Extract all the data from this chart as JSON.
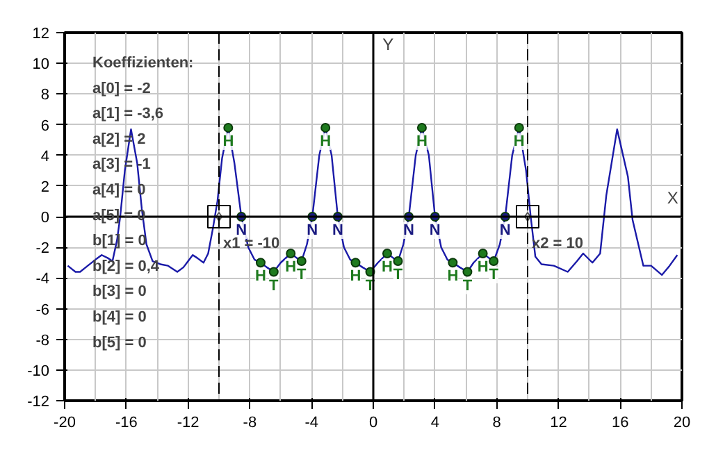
{
  "chart_data": {
    "type": "line",
    "xlabel": "X",
    "ylabel": "Y",
    "xlim": [
      -20,
      20
    ],
    "ylim": [
      -12,
      12
    ],
    "xticks": [
      -20,
      -16,
      -12,
      -8,
      -4,
      0,
      4,
      8,
      12,
      16,
      20
    ],
    "yticks": [
      -12,
      -10,
      -8,
      -6,
      -4,
      -2,
      0,
      2,
      4,
      6,
      8,
      10,
      12
    ],
    "grid": true,
    "line_style": "solid",
    "marker": "none",
    "series": [
      {
        "color": "#1a1aa8",
        "x": [
          -19.8,
          -19.3,
          -19.0,
          -18.5,
          -18.0,
          -17.6,
          -17.2,
          -16.9,
          -16.6,
          -16.4,
          -16.1,
          -15.7,
          -15.3,
          -15.0,
          -14.7,
          -14.3,
          -13.8,
          -13.3,
          -12.7,
          -12.3,
          -12.0,
          -11.7,
          -11.4,
          -11.0,
          -10.7,
          -10.4,
          -10.1,
          -9.8,
          -9.4,
          -9.0,
          -8.55,
          -8.1,
          -7.7,
          -7.3,
          -6.9,
          -6.45,
          -6.0,
          -5.35,
          -4.95,
          -4.65,
          -4.3,
          -3.95,
          -3.5,
          -3.1,
          -2.7,
          -2.3,
          -1.9,
          -1.5,
          -1.15,
          -0.7,
          -0.2,
          0.3,
          0.9,
          1.3,
          1.6,
          1.95,
          2.3,
          2.75,
          3.15,
          3.6,
          4.0,
          4.4,
          4.8,
          5.15,
          5.6,
          6.1,
          6.5,
          7.1,
          7.5,
          7.8,
          8.2,
          8.55,
          9.0,
          9.45,
          9.9,
          10.2,
          10.5,
          10.9,
          11.7,
          12.6,
          13.2,
          13.6,
          14.2,
          14.7,
          15.1,
          15.8,
          16.5,
          16.8,
          17.5,
          18.0,
          18.7,
          19.2,
          19.7
        ],
        "values": [
          -3.2,
          -3.6,
          -3.6,
          -3.2,
          -2.8,
          -2.5,
          -2.7,
          -2.9,
          -1.5,
          0,
          3,
          5.7,
          3.5,
          0.5,
          -1.8,
          -2.9,
          -3.1,
          -3.2,
          -3.6,
          -3.3,
          -2.9,
          -2.5,
          -2.7,
          -3.0,
          -2.4,
          -0.8,
          1.0,
          3.8,
          5.8,
          3.5,
          0,
          -2.0,
          -2.8,
          -3.0,
          -3.3,
          -3.6,
          -3.0,
          -2.4,
          -2.7,
          -2.9,
          -1.8,
          0,
          4,
          5.8,
          4,
          0,
          -2.0,
          -2.8,
          -3.0,
          -3.3,
          -3.6,
          -3.0,
          -2.4,
          -2.7,
          -2.9,
          -1.8,
          0,
          4,
          5.8,
          4,
          0,
          -2.0,
          -2.8,
          -3.0,
          -3.3,
          -3.6,
          -3.0,
          -2.4,
          -2.7,
          -2.9,
          -1.8,
          0,
          4,
          5.8,
          3.0,
          0,
          -2.6,
          -3.1,
          -3.2,
          -3.6,
          -2.9,
          -2.4,
          -3.0,
          -2.4,
          1.4,
          5.7,
          2.6,
          -0.2,
          -3.2,
          -3.2,
          -3.8,
          -3.2,
          -2.5
        ]
      },
      {
        "type": "scatter",
        "marker": "circle",
        "color": "#1e7a1e",
        "x": [
          -9.4,
          -3.1,
          3.15,
          9.45,
          -7.3,
          -5.35,
          -1.15,
          0.9,
          5.15,
          7.1,
          -6.45,
          -4.65,
          -0.2,
          1.6,
          6.1,
          7.8
        ],
        "values": [
          5.8,
          5.8,
          5.8,
          5.8,
          -3.0,
          -2.4,
          -3.0,
          -2.4,
          -3.0,
          -2.4,
          -3.6,
          -2.9,
          -3.6,
          -2.9,
          -3.6,
          -2.9
        ],
        "value_labels": [
          "H",
          "H",
          "H",
          "H",
          "H",
          "H",
          "H",
          "H",
          "H",
          "H",
          "T",
          "T",
          "T",
          "T",
          "T",
          "T"
        ]
      },
      {
        "type": "scatter",
        "marker": "circle",
        "color": "#1a1a80",
        "x": [
          -8.55,
          -3.95,
          -2.3,
          2.3,
          4.0,
          8.55
        ],
        "values": [
          0,
          0,
          0,
          0,
          0,
          0
        ],
        "value_labels": [
          "N",
          "N",
          "N",
          "N",
          "N",
          "N"
        ]
      },
      {
        "type": "scatter",
        "marker": "square",
        "color": "#000000",
        "x": [
          -10,
          10
        ],
        "values": [
          0,
          0
        ]
      }
    ],
    "ref_lines": [
      {
        "axis": "x",
        "value": -10,
        "label": "x1 = -10",
        "line_style": "dashed",
        "color": "#000000"
      },
      {
        "axis": "x",
        "value": 10,
        "label": "x2 = 10",
        "line_style": "dashed",
        "color": "#000000"
      }
    ],
    "annotations": [
      "Koeffizienten:",
      "a[0] = -2",
      "a[1] = -3,6",
      "a[2] = 2",
      "a[3] = -1",
      "a[4] = 0",
      "a[5] = 0",
      "b[1] = 0",
      "b[2] = 0,4",
      "b[3] = 0",
      "b[4] = 0",
      "b[5] = 0"
    ]
  }
}
